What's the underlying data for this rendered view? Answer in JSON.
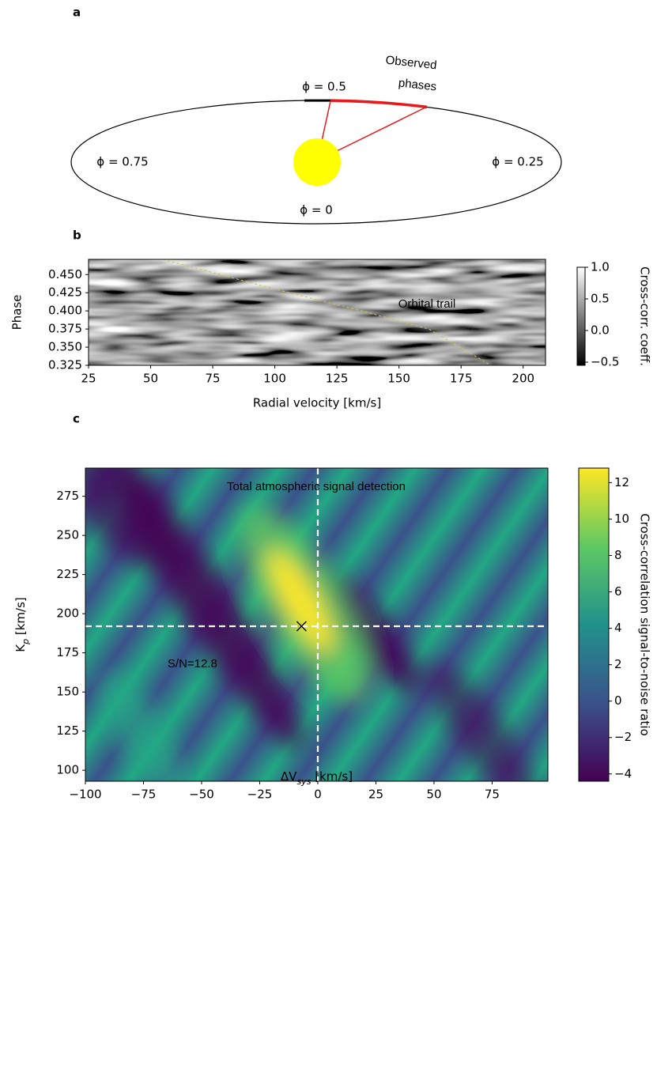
{
  "panel_labels": [
    "a",
    "b",
    "c"
  ],
  "diagram": {
    "phase_top": "ϕ = 0.5",
    "phase_left": "ϕ = 0.75",
    "phase_right": "ϕ = 0.25",
    "phase_bottom": "ϕ = 0",
    "observed_line1": "Observed",
    "observed_line2": "phases"
  },
  "chart_data": [
    {
      "type": "heatmap",
      "annotation": "Orbital trail",
      "annotation_color": "#f2f21e",
      "x_label": "Radial velocity [km/s]",
      "y_label": "Phase",
      "colorbar_label": "Cross-corr. coeff.",
      "colormap": "gray",
      "xlim": [
        25,
        209
      ],
      "ylim": [
        0.325,
        0.471
      ],
      "xticks": [
        25,
        50,
        75,
        100,
        125,
        150,
        175,
        200
      ],
      "yticks": [
        {
          "value": 0.325,
          "label": "0.325"
        },
        {
          "value": 0.35,
          "label": "0.350"
        },
        {
          "value": 0.375,
          "label": "0.375"
        },
        {
          "value": 0.4,
          "label": "0.400"
        },
        {
          "value": 0.425,
          "label": "0.425"
        },
        {
          "value": 0.45,
          "label": "0.450"
        }
      ],
      "clim": [
        -0.55,
        1.0
      ],
      "cticks": [
        {
          "value": -0.5,
          "label": "−0.5"
        },
        {
          "value": 0,
          "label": "0.0"
        },
        0.5,
        {
          "value": 1,
          "label": "1.0"
        }
      ],
      "trail": {
        "x": [
          55,
          100,
          135,
          162,
          187
        ],
        "y": [
          0.471,
          0.43,
          0.4,
          0.375,
          0.325
        ],
        "color": "#c8c83c"
      }
    },
    {
      "type": "heatmap",
      "annotation": "Total atmospheric signal detection",
      "annotation_color": "#f2f21e",
      "x_label": {
        "main": "ΔV",
        "sub": "sys",
        "unit": " [km/s]"
      },
      "y_label": {
        "main": "K",
        "sub": "p",
        "unit": " [km/s]"
      },
      "colorbar_label": "Cross-correlation signal-to-noise ratio",
      "colormap": "viridis",
      "xlim": [
        -100,
        99
      ],
      "ylim": [
        93,
        293
      ],
      "xticks": [
        {
          "value": -100,
          "label": "−100"
        },
        {
          "value": -75,
          "label": "−75"
        },
        {
          "value": -50,
          "label": "−50"
        },
        {
          "value": -25,
          "label": "−25"
        },
        0,
        25,
        50,
        75
      ],
      "yticks": [
        100,
        125,
        150,
        175,
        200,
        225,
        250,
        275
      ],
      "clim": [
        -4.4,
        12.8
      ],
      "cticks": [
        {
          "value": -4,
          "label": "−4"
        },
        {
          "value": -2,
          "label": "−2"
        },
        0,
        2,
        4,
        6,
        8,
        10,
        12
      ],
      "crosshair": {
        "x": 0,
        "y": 192,
        "color": "#ffffff"
      },
      "peak": {
        "x": -7,
        "y": 192,
        "value": 12.8,
        "label": "S/N=12.8"
      }
    }
  ]
}
